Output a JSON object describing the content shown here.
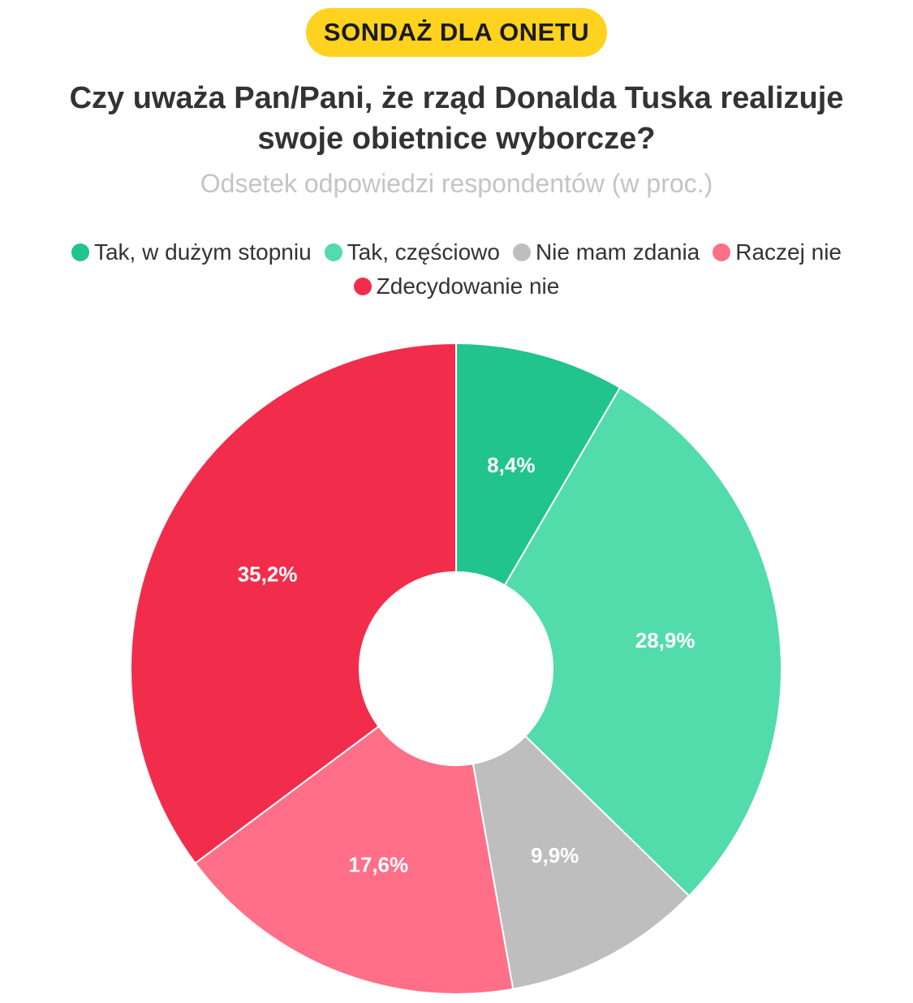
{
  "badge": "SONDAŻ DLA ONETU",
  "chart_data": {
    "type": "pie",
    "title": "Czy uważa Pan/Pani, że rząd Donalda Tuska realizuje swoje obietnice wyborcze?",
    "subtitle": "Odsetek odpowiedzi respondentów (w proc.)",
    "categories": [
      "Tak, w dużym stopniu",
      "Tak, częściowo",
      "Nie mam zdania",
      "Raczej nie",
      "Zdecydowanie nie"
    ],
    "values": [
      8.4,
      28.9,
      9.9,
      17.6,
      35.2
    ],
    "value_labels": [
      "8,4%",
      "28,9%",
      "9,9%",
      "17,6%",
      "35,2%"
    ],
    "colors": [
      "#20c48c",
      "#52dbab",
      "#bebebe",
      "#ff6f88",
      "#f22d4c"
    ],
    "legend_position": "top-center",
    "donut": true
  }
}
